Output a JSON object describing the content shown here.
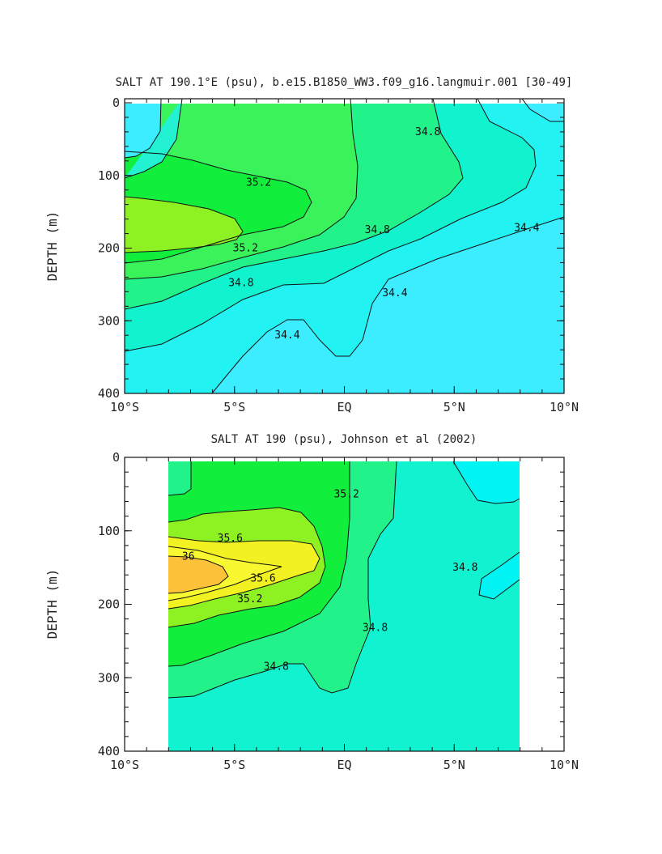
{
  "chart_data": [
    {
      "type": "contour",
      "title": "SALT AT 190.1°E (psu), b.e15.B1850_WW3.f09_g16.langmuir.001 [30-49]",
      "ylabel": "DEPTH (m)",
      "xlim": [
        -10,
        10
      ],
      "ylim": [
        400,
        0
      ],
      "x_tick_values": [
        -10,
        -5,
        0,
        5,
        10
      ],
      "x_tick_labels": [
        "10°S",
        "5°S",
        "EQ",
        "5°N",
        "10°N"
      ],
      "y_tick_values": [
        0,
        100,
        200,
        300,
        400
      ],
      "y_tick_labels": [
        "0",
        "100",
        "200",
        "300",
        "400"
      ],
      "contour_interval": 0.2,
      "levels": [
        34.4,
        34.6,
        34.8,
        35.0,
        35.2,
        35.4
      ],
      "fill_colors": {
        "below_34.4": "#3cecff",
        "34.4-34.6": "#22f2f2",
        "34.6-34.8": "#11f2ce",
        "34.8-35.0": "#22f28a",
        "35.0-35.2": "#3af25a",
        "35.2-35.4": "#12ee3c",
        "35.4-35.6": "#8ef222"
      },
      "contour_labels": [
        {
          "text": "34.8",
          "x": 3.8,
          "depth": 40
        },
        {
          "text": "35.2",
          "x": -3.9,
          "depth": 110
        },
        {
          "text": "34.8",
          "x": 1.5,
          "depth": 175
        },
        {
          "text": "34.4",
          "x": 8.3,
          "depth": 172
        },
        {
          "text": "35.2",
          "x": -4.5,
          "depth": 200
        },
        {
          "text": "34.8",
          "x": -4.7,
          "depth": 248
        },
        {
          "text": "34.4",
          "x": 2.3,
          "depth": 262
        },
        {
          "text": "34.4",
          "x": -2.6,
          "depth": 320
        }
      ]
    },
    {
      "type": "contour",
      "title": "SALT AT 190 (psu), Johnson et al (2002)",
      "ylabel": "DEPTH (m)",
      "xlim": [
        -10,
        10
      ],
      "ylim": [
        400,
        0
      ],
      "data_x_range": [
        -8,
        8
      ],
      "x_tick_values": [
        -10,
        -5,
        0,
        5,
        10
      ],
      "x_tick_labels": [
        "10°S",
        "5°S",
        "EQ",
        "5°N",
        "10°N"
      ],
      "y_tick_values": [
        0,
        100,
        200,
        300,
        400
      ],
      "y_tick_labels": [
        "0",
        "100",
        "200",
        "300",
        "400"
      ],
      "contour_interval": 0.2,
      "levels": [
        34.6,
        34.8,
        35.0,
        35.2,
        35.4,
        35.6,
        35.8,
        36.0
      ],
      "fill_colors": {
        "below_34.6": "#00f4f4",
        "34.6-34.8": "#11f2d0",
        "34.8-35.0": "#22f28a",
        "35.0-35.2": "#12ee3c",
        "35.2-35.4": "#12ee3c",
        "35.4-35.6": "#8ef222",
        "35.6-35.8": "#f2f222",
        "35.8-36.0": "#f8f830",
        "above_36.0": "#fcc33a"
      },
      "contour_labels": [
        {
          "text": "35.2",
          "x": 0.1,
          "depth": 50
        },
        {
          "text": "35.6",
          "x": -5.2,
          "depth": 110
        },
        {
          "text": "36",
          "x": -7.1,
          "depth": 135
        },
        {
          "text": "34.8",
          "x": 5.5,
          "depth": 150
        },
        {
          "text": "35.6",
          "x": -3.7,
          "depth": 165
        },
        {
          "text": "35.2",
          "x": -4.3,
          "depth": 193
        },
        {
          "text": "34.8",
          "x": 1.4,
          "depth": 232
        },
        {
          "text": "34.8",
          "x": -3.1,
          "depth": 285
        }
      ]
    }
  ]
}
